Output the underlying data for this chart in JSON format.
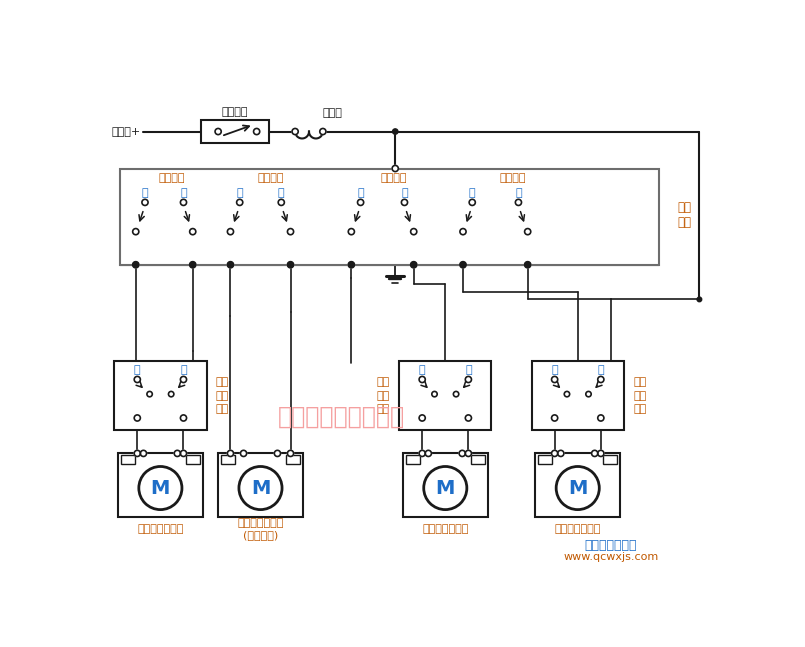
{
  "bg_color": "#ffffff",
  "lc": "#1a1a1a",
  "wc": "#6d6d6d",
  "blue": "#1e6ec8",
  "orange": "#c05800",
  "pink": "#f5a0a0",
  "battery_label": "蓄电池+",
  "ignition_label": "点火开关",
  "breaker_label": "断路器",
  "main_switch_label": "主控\n开关",
  "window_labels": [
    "左后车窗",
    "左前车窗",
    "右前车窗",
    "右后车窗"
  ],
  "up_label": "升",
  "down_label": "降",
  "local_labels_right": [
    "左后\n车窗\n开关",
    "右后\n车窗\n开关"
  ],
  "local_label_left": "右前\n车窗\n开关",
  "motor_labels": [
    "左后车窗电动机",
    "左前车窗电动机\n(驾驶员侧)",
    "右前车窗电动机",
    "右后车窗电动机"
  ],
  "watermark": "汽车维修技术与知识",
  "watermark_color": "#f5a0a0",
  "site1": "汽车维修技术网",
  "site2": "www.qcwxjs.com",
  "site1_color": "#1e6ec8",
  "site2_color": "#c05800"
}
